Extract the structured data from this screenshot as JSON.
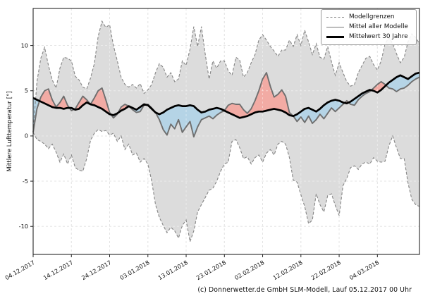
{
  "footer": {
    "copyright": "(c) Donnerwetter.de GmbH SLM-Modell, Lauf 05.12.2017 00 Uhr"
  },
  "chart_data": {
    "type": "line",
    "title": "",
    "xlabel": "",
    "ylabel": "Mittlere Lufttemperatur [°]",
    "ylim": [
      -13.1,
      14.1
    ],
    "yticks": [
      -10,
      -5,
      0,
      5,
      10
    ],
    "grid": true,
    "legend_position": "upper right",
    "x_tick_labels": [
      "04.12.2017",
      "14.12.2017",
      "24.12.2017",
      "03.01.2018",
      "13.01.2018",
      "23.01.2018",
      "02.02.2018",
      "12.02.2018",
      "22.02.2018",
      "04.03.2018"
    ],
    "x_tick_days": [
      0,
      10,
      20,
      30,
      40,
      50,
      60,
      70,
      80,
      90
    ],
    "x_is_days_from": "04.12.2017",
    "legend": [
      {
        "label": "Modellgrenzen",
        "style": "dashed",
        "color": "#8a8a8a"
      },
      {
        "label": "Mittel aller Modelle",
        "style": "solid",
        "color": "#767676"
      },
      {
        "label": "Mittelwert 30 Jahre",
        "style": "bold",
        "color": "#000000"
      }
    ],
    "colors": {
      "band_fill": "#dcdcdc",
      "above_normal_fill": "#f2aba4",
      "below_normal_fill": "#b5d4e6",
      "boundary_line": "#858585",
      "model_mean_line": "#6f6f6f",
      "climate_mean_line": "#000000",
      "grid_line": "#c9c9c9"
    },
    "series": [
      {
        "name": "Modellgrenze oben",
        "values": [
          0.5,
          6.0,
          8.6,
          9.8,
          7.8,
          6.2,
          5.3,
          7.5,
          8.7,
          8.6,
          8.3,
          6.6,
          6.2,
          5.4,
          5.2,
          6.4,
          8.0,
          11.0,
          12.7,
          12.0,
          12.3,
          10.0,
          8.3,
          6.5,
          5.7,
          5.4,
          5.7,
          5.3,
          5.8,
          4.7,
          5.1,
          5.7,
          7.0,
          8.0,
          7.6,
          6.5,
          7.0,
          6.0,
          6.3,
          8.3,
          7.8,
          9.6,
          12.1,
          9.9,
          12.1,
          9.0,
          6.3,
          8.3,
          7.5,
          8.3,
          8.3,
          7.2,
          6.7,
          8.7,
          8.4,
          6.5,
          7.0,
          8.1,
          9.0,
          10.6,
          11.2,
          10.6,
          9.9,
          9.4,
          8.8,
          9.5,
          9.5,
          10.6,
          9.9,
          11.2,
          10.0,
          11.7,
          10.4,
          9.0,
          10.2,
          8.7,
          8.5,
          9.9,
          8.2,
          6.7,
          8.1,
          7.0,
          6.0,
          5.5,
          5.7,
          7.0,
          7.8,
          8.6,
          8.8,
          7.9,
          7.3,
          8.3,
          10.2,
          10.9,
          10.2,
          9.1,
          8.1,
          8.7,
          10.4,
          11.3,
          10.9,
          10.2
        ]
      },
      {
        "name": "Modellgrenze unten",
        "values": [
          0.4,
          -0.4,
          -0.6,
          -0.9,
          -1.4,
          -0.9,
          -1.8,
          -2.9,
          -2.0,
          -3.1,
          -2.1,
          -3.5,
          -3.8,
          -3.9,
          -2.5,
          -0.5,
          0.3,
          0.7,
          0.5,
          0.6,
          0.1,
          0.3,
          -0.6,
          0.0,
          -1.5,
          -0.9,
          -2.1,
          -1.9,
          -2.9,
          -2.5,
          -3.1,
          -5.0,
          -7.6,
          -9.0,
          -9.9,
          -10.7,
          -10.1,
          -10.5,
          -11.3,
          -9.9,
          -9.3,
          -11.7,
          -10.5,
          -8.4,
          -7.6,
          -6.8,
          -6.0,
          -5.8,
          -5.0,
          -3.9,
          -3.1,
          -2.9,
          -0.6,
          -0.4,
          -1.3,
          -2.5,
          -2.3,
          -3.1,
          -2.4,
          -2.1,
          -2.9,
          -1.9,
          -1.5,
          -2.1,
          -0.9,
          -0.6,
          -0.9,
          -2.4,
          -4.9,
          -5.1,
          -6.5,
          -7.8,
          -9.7,
          -9.3,
          -6.4,
          -7.6,
          -8.4,
          -6.6,
          -6.4,
          -7.7,
          -8.8,
          -5.5,
          -4.7,
          -3.5,
          -3.3,
          -3.7,
          -3.1,
          -2.9,
          -3.1,
          -2.4,
          -2.8,
          -2.9,
          -2.8,
          -1.1,
          0.0,
          -1.3,
          -2.5,
          -2.5,
          -5.2,
          -7.0,
          -7.6,
          -7.8
        ]
      },
      {
        "name": "Mittel aller Modelle",
        "values": [
          0.4,
          3.0,
          4.3,
          5.0,
          5.2,
          4.0,
          3.2,
          3.7,
          4.4,
          3.4,
          2.8,
          3.0,
          3.7,
          4.4,
          4.0,
          3.5,
          4.2,
          5.0,
          5.3,
          4.0,
          2.6,
          2.0,
          2.4,
          3.2,
          3.5,
          3.3,
          2.9,
          2.6,
          2.7,
          3.4,
          3.5,
          3.1,
          2.6,
          1.8,
          0.7,
          0.1,
          1.3,
          0.8,
          1.8,
          0.4,
          1.0,
          1.6,
          -0.1,
          1.0,
          1.8,
          2.0,
          2.2,
          1.9,
          2.3,
          2.6,
          2.8,
          3.4,
          3.6,
          3.5,
          3.5,
          2.9,
          2.5,
          3.0,
          3.9,
          5.0,
          6.3,
          7.0,
          5.5,
          4.3,
          4.6,
          5.1,
          4.4,
          2.6,
          2.2,
          1.6,
          2.1,
          1.5,
          2.2,
          1.4,
          1.8,
          2.4,
          1.9,
          2.5,
          3.1,
          2.7,
          3.1,
          3.5,
          3.9,
          3.5,
          3.4,
          4.0,
          4.4,
          4.7,
          4.9,
          5.3,
          5.7,
          6.0,
          5.7,
          5.3,
          5.2,
          4.9,
          5.2,
          5.3,
          5.6,
          6.0,
          6.3,
          6.5
        ]
      },
      {
        "name": "Mittelwert 30 Jahre",
        "values": [
          4.2,
          4.0,
          3.8,
          3.6,
          3.4,
          3.2,
          3.1,
          3.1,
          3.0,
          3.1,
          3.1,
          2.9,
          3.0,
          3.4,
          3.7,
          3.5,
          3.4,
          3.2,
          3.0,
          2.7,
          2.4,
          2.3,
          2.5,
          2.8,
          3.0,
          3.3,
          3.1,
          2.9,
          3.2,
          3.5,
          3.4,
          3.0,
          2.6,
          2.4,
          2.6,
          2.9,
          3.1,
          3.3,
          3.4,
          3.3,
          3.3,
          3.4,
          3.3,
          2.9,
          2.6,
          2.7,
          2.9,
          3.0,
          3.1,
          3.0,
          2.8,
          2.6,
          2.4,
          2.2,
          2.0,
          2.1,
          2.2,
          2.4,
          2.6,
          2.7,
          2.7,
          2.8,
          2.9,
          3.0,
          2.9,
          2.8,
          2.6,
          2.3,
          2.2,
          2.4,
          2.7,
          3.0,
          3.1,
          2.9,
          2.7,
          3.0,
          3.4,
          3.7,
          3.9,
          4.0,
          3.9,
          3.7,
          3.6,
          3.8,
          4.1,
          4.4,
          4.7,
          4.9,
          5.1,
          5.0,
          4.8,
          5.1,
          5.5,
          5.9,
          6.2,
          6.5,
          6.7,
          6.5,
          6.3,
          6.6,
          6.9,
          7.0
        ]
      }
    ]
  }
}
